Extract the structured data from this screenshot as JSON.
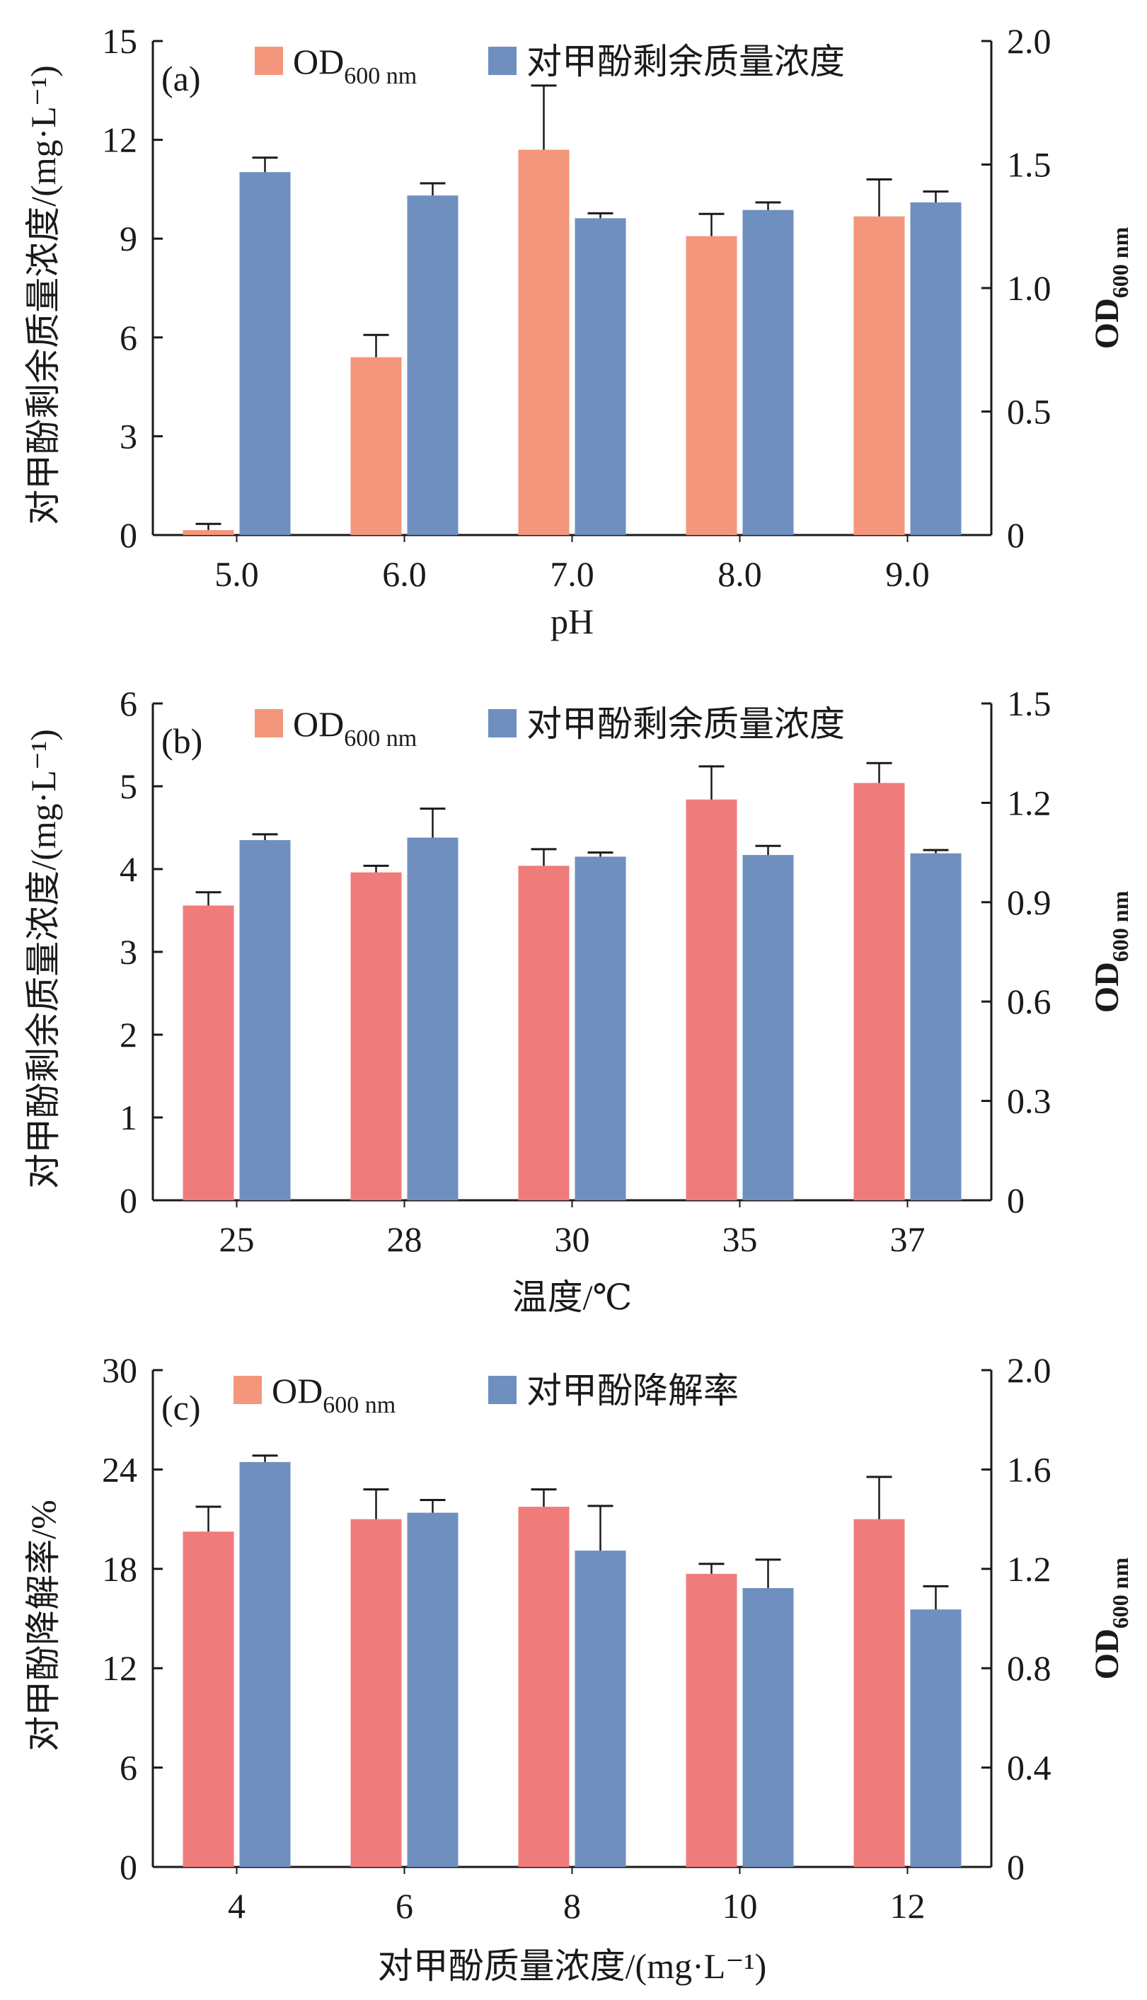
{
  "chart_data": [
    {
      "type": "bar",
      "panel_label": "(a)",
      "xlabel": "pH",
      "ylabel": "对甲酚剩余质量浓度/(mg·L⁻¹)",
      "y2label": "OD",
      "y2label_sub": "600 nm",
      "categories": [
        "5.0",
        "6.0",
        "7.0",
        "8.0",
        "9.0"
      ],
      "ylim": [
        0,
        15
      ],
      "yticks": [
        "0",
        "3",
        "6",
        "9",
        "12",
        "15"
      ],
      "y2lim": [
        0,
        2.0
      ],
      "y2ticks": [
        "0",
        "0.5",
        "1.0",
        "1.5",
        "2.0"
      ],
      "legend": [
        {
          "label": "OD",
          "sub": "600 nm",
          "color": "#F3967B"
        },
        {
          "label": "对甲酚剩余质量浓度",
          "sub": "",
          "color": "#6F8FBF"
        }
      ],
      "series": [
        {
          "name": "OD600 nm",
          "axis": "right",
          "color": "#F3967B",
          "values": [
            0.02,
            0.72,
            1.56,
            1.21,
            1.29
          ],
          "errors": [
            0.025,
            0.09,
            0.26,
            0.09,
            0.15
          ]
        },
        {
          "name": "对甲酚剩余质量浓度",
          "axis": "left",
          "color": "#6F8FBF",
          "values": [
            11.02,
            10.31,
            9.62,
            9.87,
            10.1
          ],
          "errors": [
            0.44,
            0.37,
            0.15,
            0.23,
            0.33
          ]
        }
      ],
      "grid": false
    },
    {
      "type": "bar",
      "panel_label": "(b)",
      "xlabel": "温度/℃",
      "ylabel": "对甲酚剩余质量浓度/(mg·L⁻¹)",
      "y2label": "OD",
      "y2label_sub": "600 nm",
      "categories": [
        "25",
        "28",
        "30",
        "35",
        "37"
      ],
      "ylim": [
        0,
        6
      ],
      "yticks": [
        "0",
        "1",
        "2",
        "3",
        "4",
        "5",
        "6"
      ],
      "y2lim": [
        0,
        1.5
      ],
      "y2ticks": [
        "0",
        "0.3",
        "0.6",
        "0.9",
        "1.2",
        "1.5"
      ],
      "legend": [
        {
          "label": "OD",
          "sub": "600 nm",
          "color": "#F3967B"
        },
        {
          "label": "对甲酚剩余质量浓度",
          "sub": "",
          "color": "#6F8FBF"
        }
      ],
      "series": [
        {
          "name": "OD600 nm",
          "axis": "right",
          "color": "#F07B7B",
          "values": [
            0.89,
            0.99,
            1.01,
            1.21,
            1.26
          ],
          "errors": [
            0.04,
            0.02,
            0.05,
            0.1,
            0.06
          ]
        },
        {
          "name": "对甲酚剩余质量浓度",
          "axis": "left",
          "color": "#6F8FBF",
          "values": [
            4.35,
            4.38,
            4.15,
            4.17,
            4.19
          ],
          "errors": [
            0.07,
            0.35,
            0.05,
            0.11,
            0.04
          ]
        }
      ],
      "grid": false
    },
    {
      "type": "bar",
      "panel_label": "(c)",
      "xlabel": "对甲酚质量浓度/(mg·L⁻¹)",
      "ylabel": "对甲酚降解率/%",
      "y2label": "OD",
      "y2label_sub": "600 nm",
      "categories": [
        "4",
        "6",
        "8",
        "10",
        "12"
      ],
      "ylim": [
        0,
        30
      ],
      "yticks": [
        "0",
        "6",
        "12",
        "18",
        "24",
        "30"
      ],
      "y2lim": [
        0,
        2.0
      ],
      "y2ticks": [
        "0",
        "0.4",
        "0.8",
        "1.2",
        "1.6",
        "2.0"
      ],
      "legend": [
        {
          "label": "OD",
          "sub": "600 nm",
          "color": "#F3967B"
        },
        {
          "label": "对甲酚降解率",
          "sub": "",
          "color": "#6F8FBF"
        }
      ],
      "series": [
        {
          "name": "OD600 nm",
          "axis": "right",
          "color": "#F07B7B",
          "values": [
            1.35,
            1.4,
            1.45,
            1.18,
            1.4
          ],
          "errors": [
            0.1,
            0.12,
            0.07,
            0.04,
            0.17
          ]
        },
        {
          "name": "对甲酚降解率",
          "axis": "left",
          "color": "#6F8FBF",
          "values": [
            24.45,
            21.39,
            19.1,
            16.84,
            15.55
          ],
          "errors": [
            0.39,
            0.77,
            2.7,
            1.72,
            1.4
          ]
        }
      ],
      "grid": false
    }
  ]
}
